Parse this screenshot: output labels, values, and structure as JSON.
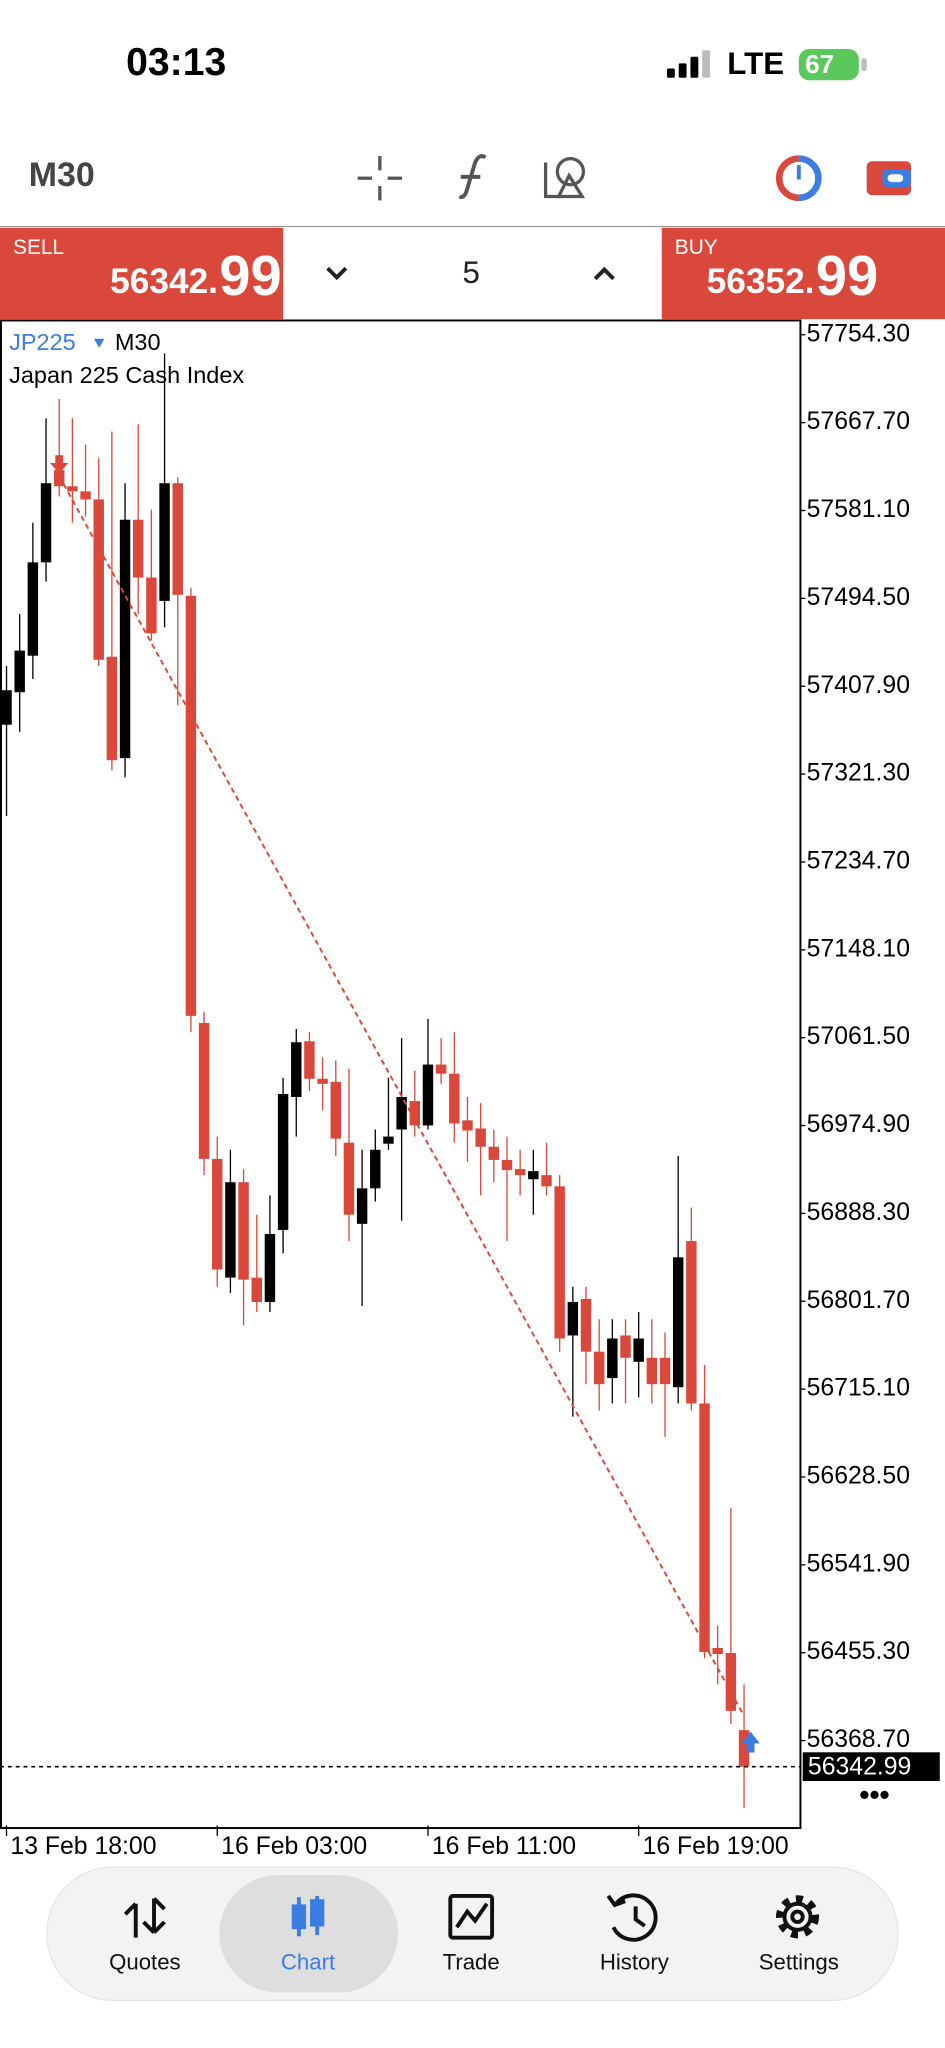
{
  "status_bar": {
    "time": "03:13",
    "network": "LTE",
    "battery": "67"
  },
  "toolbar": {
    "timeframe": "M30"
  },
  "trade_panel": {
    "sell": {
      "label": "SELL",
      "price_int": "56342.",
      "price_frac": "99"
    },
    "volume": "5",
    "buy": {
      "label": "BUY",
      "price_int": "56352.",
      "price_frac": "99"
    }
  },
  "chart_data": {
    "type": "candlestick",
    "symbol": "JP225",
    "timeframe": "M30",
    "description": "Japan 225 Cash Index",
    "categories": [
      "13 Feb 18:00",
      null,
      null,
      null,
      null,
      null,
      null,
      null,
      null,
      null,
      null,
      null,
      null,
      null,
      null,
      null,
      "16 Feb 03:00",
      null,
      null,
      null,
      null,
      null,
      null,
      null,
      null,
      null,
      null,
      null,
      null,
      null,
      null,
      null,
      "16 Feb 11:00",
      null,
      null,
      null,
      null,
      null,
      null,
      null,
      null,
      null,
      null,
      null,
      null,
      null,
      null,
      null,
      "16 Feb 19:00",
      null,
      null,
      null,
      null,
      null,
      null,
      null,
      null
    ],
    "open": [
      57370,
      57402,
      57438,
      57530,
      57621,
      57605,
      57600,
      57592,
      57437,
      57337,
      57572,
      57515,
      57492,
      57608,
      57497,
      57076,
      56942,
      56825,
      56919,
      56825,
      56801,
      56872,
      57003,
      57058,
      57021,
      57018,
      56958,
      56878,
      56913,
      56957,
      56971,
      56999,
      56975,
      57035,
      57026,
      56980,
      56972,
      56954,
      56941,
      56932,
      56922,
      56926,
      56915,
      56768,
      56804,
      56752,
      56726,
      56768,
      56742,
      56746,
      56746,
      56717,
      56861,
      56701,
      56460,
      56455,
      56379
    ],
    "high": [
      57428,
      57479,
      57569,
      57672,
      57691,
      57672,
      57646,
      57633,
      57659,
      57608,
      57666,
      57582,
      57736,
      57614,
      57505,
      57087,
      56964,
      56951,
      56932,
      56887,
      56906,
      57022,
      57070,
      57067,
      57042,
      57039,
      57031,
      56951,
      56971,
      57022,
      57061,
      57029,
      57080,
      57061,
      57067,
      57003,
      56997,
      56971,
      56964,
      56951,
      56951,
      56958,
      56926,
      56816,
      56816,
      56784,
      56784,
      56784,
      56791,
      56784,
      56771,
      56945,
      56894,
      56739,
      56482,
      56598,
      56424
    ],
    "low": [
      57280,
      57363,
      57415,
      57511,
      57595,
      57569,
      57575,
      57428,
      57325,
      57318,
      57479,
      57453,
      57466,
      57389,
      57067,
      56926,
      56816,
      56810,
      56778,
      56791,
      56791,
      56849,
      56964,
      57009,
      56990,
      56945,
      56861,
      56797,
      56900,
      56951,
      56881,
      56964,
      56971,
      57016,
      56958,
      56939,
      56906,
      56919,
      56861,
      56906,
      56887,
      56906,
      56752,
      56688,
      56720,
      56694,
      56701,
      56701,
      56707,
      56701,
      56668,
      56701,
      56694,
      56450,
      56424,
      56385,
      56302
    ],
    "close": [
      57404,
      57443,
      57530,
      57608,
      57605,
      57600,
      57592,
      57434,
      57335,
      57572,
      57515,
      57460,
      57608,
      57498,
      57083,
      56942,
      56833,
      56919,
      56823,
      56801,
      56868,
      57006,
      57057,
      57021,
      57016,
      56962,
      56887,
      56913,
      56951,
      56964,
      57003,
      56975,
      57035,
      57026,
      56977,
      56970,
      56954,
      56941,
      56931,
      56926,
      56930,
      56915,
      56765,
      56801,
      56752,
      56720,
      56765,
      56746,
      56765,
      56720,
      56720,
      56845,
      56701,
      56456,
      56454,
      56398,
      56342.99
    ],
    "up_color": "#000000",
    "down_color": "#d9483b",
    "ylim": [
      56282.5,
      57768.4
    ],
    "yticks": [
      {
        "value": 57754.3,
        "label": "57754.30"
      },
      {
        "value": 57667.7,
        "label": "57667.70"
      },
      {
        "value": 57581.1,
        "label": "57581.10"
      },
      {
        "value": 57494.5,
        "label": "57494.50"
      },
      {
        "value": 57407.9,
        "label": "57407.90"
      },
      {
        "value": 57321.3,
        "label": "57321.30"
      },
      {
        "value": 57234.7,
        "label": "57234.70"
      },
      {
        "value": 57148.1,
        "label": "57148.10"
      },
      {
        "value": 57061.5,
        "label": "57061.50"
      },
      {
        "value": 56974.9,
        "label": "56974.90"
      },
      {
        "value": 56888.3,
        "label": "56888.30"
      },
      {
        "value": 56801.7,
        "label": "56801.70"
      },
      {
        "value": 56715.1,
        "label": "56715.10"
      },
      {
        "value": 56628.5,
        "label": "56628.50"
      },
      {
        "value": 56541.9,
        "label": "56541.90"
      },
      {
        "value": 56455.3,
        "label": "56455.30"
      },
      {
        "value": 56368.7,
        "label": "56368.70"
      }
    ],
    "last_price": {
      "value": 56342.99,
      "label": "56342.99"
    },
    "trendline": {
      "x": [
        4,
        56
      ],
      "y": [
        57615,
        56393
      ],
      "color": "#d9483b"
    }
  },
  "tab_bar": {
    "tabs": [
      {
        "label": "Quotes"
      },
      {
        "label": "Chart"
      },
      {
        "label": "Trade"
      },
      {
        "label": "History"
      },
      {
        "label": "Settings"
      }
    ],
    "active": 1
  }
}
